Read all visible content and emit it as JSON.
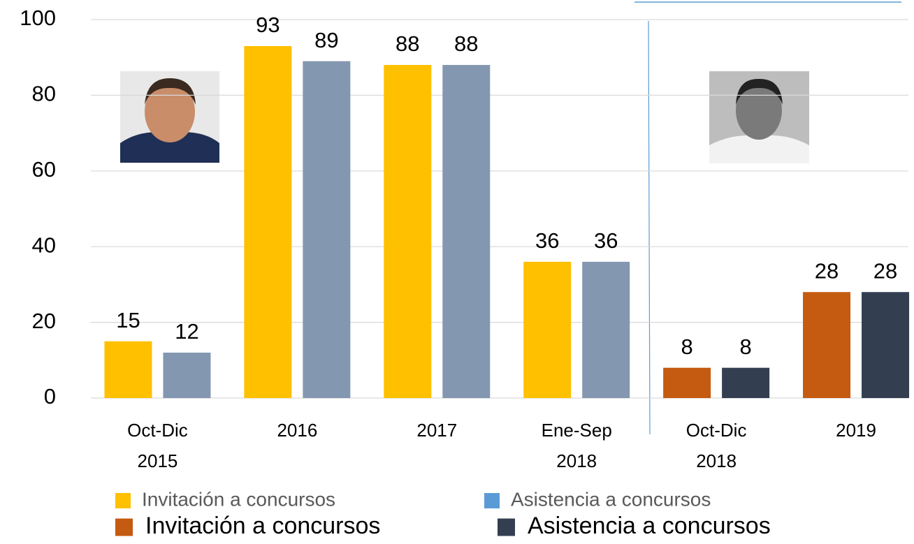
{
  "chart_data": {
    "type": "bar",
    "categories": [
      "Oct-Dic\n2015",
      "2016",
      "2017",
      "Ene-Sep\n2018",
      "Oct-Dic\n2018",
      "2019"
    ],
    "series": [
      {
        "name": "Invitación a concursos",
        "color": "#ffc000",
        "values": [
          15,
          93,
          88,
          36,
          null,
          null
        ]
      },
      {
        "name": "Asistencia a concursos",
        "color": "#8497b0",
        "legend_color": "#5b9bd5",
        "values": [
          12,
          89,
          88,
          36,
          null,
          null
        ]
      },
      {
        "name": "Invitación a concursos",
        "color": "#c55a11",
        "values": [
          null,
          null,
          null,
          null,
          8,
          28
        ]
      },
      {
        "name": "Asistencia a concursos",
        "color": "#333f50",
        "values": [
          null,
          null,
          null,
          null,
          8,
          28
        ]
      }
    ],
    "ylim": [
      0,
      100
    ],
    "yticks": [
      0,
      20,
      40,
      60,
      80,
      100
    ],
    "grid": true
  }
}
